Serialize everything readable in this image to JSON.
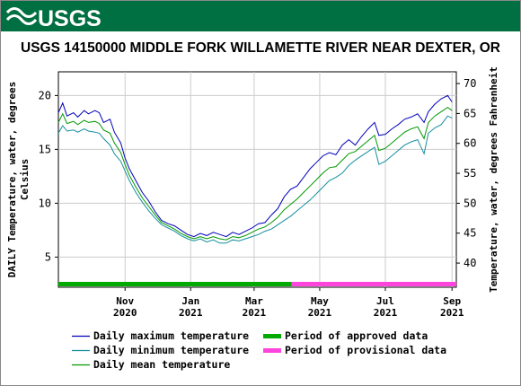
{
  "header": {
    "logo_text": "USGS",
    "bg_color": "#006f41"
  },
  "chart_data": {
    "type": "line",
    "title": "USGS 14150000 MIDDLE FORK WILLAMETTE RIVER NEAR DEXTER, OR",
    "ylabel_left": [
      "DAILY Temperature, water, degrees",
      "Celsius"
    ],
    "ylabel_right": "Temperature, water, degrees Fahrenheit",
    "ylim_celsius": [
      2.2,
      22.2
    ],
    "y_ticks_left": [
      5,
      10,
      15,
      20
    ],
    "y_ticks_right": [
      40,
      45,
      50,
      55,
      60,
      65,
      70
    ],
    "grid": true,
    "x_ticks": [
      {
        "month": "Nov",
        "year": "2020",
        "day": 62
      },
      {
        "month": "Jan",
        "year": "2021",
        "day": 123
      },
      {
        "month": "Mar",
        "year": "2021",
        "day": 182
      },
      {
        "month": "May",
        "year": "2021",
        "day": 243
      },
      {
        "month": "Jul",
        "year": "2021",
        "day": 304
      },
      {
        "month": "Sep",
        "year": "2021",
        "day": 366
      }
    ],
    "x_range_days": [
      0,
      370
    ],
    "x_start_date": "2020-08-31",
    "series": [
      {
        "name": "Daily maximum temperature",
        "color": "#0000bb",
        "points": [
          [
            0,
            18.4
          ],
          [
            4,
            19.3
          ],
          [
            8,
            18.1
          ],
          [
            14,
            18.4
          ],
          [
            18,
            18.0
          ],
          [
            24,
            18.6
          ],
          [
            28,
            18.3
          ],
          [
            34,
            18.6
          ],
          [
            38,
            18.4
          ],
          [
            42,
            17.5
          ],
          [
            48,
            17.8
          ],
          [
            52,
            16.6
          ],
          [
            58,
            15.6
          ],
          [
            62,
            14.2
          ],
          [
            66,
            13.2
          ],
          [
            72,
            12.1
          ],
          [
            78,
            11.0
          ],
          [
            84,
            10.2
          ],
          [
            90,
            9.2
          ],
          [
            96,
            8.4
          ],
          [
            102,
            8.1
          ],
          [
            108,
            7.9
          ],
          [
            114,
            7.5
          ],
          [
            120,
            7.1
          ],
          [
            126,
            6.9
          ],
          [
            132,
            7.2
          ],
          [
            138,
            7.0
          ],
          [
            144,
            7.3
          ],
          [
            150,
            7.1
          ],
          [
            156,
            6.9
          ],
          [
            162,
            7.3
          ],
          [
            168,
            7.1
          ],
          [
            174,
            7.4
          ],
          [
            180,
            7.7
          ],
          [
            186,
            8.1
          ],
          [
            192,
            8.2
          ],
          [
            198,
            8.9
          ],
          [
            204,
            9.5
          ],
          [
            210,
            10.6
          ],
          [
            216,
            11.3
          ],
          [
            222,
            11.6
          ],
          [
            228,
            12.4
          ],
          [
            234,
            13.2
          ],
          [
            240,
            13.8
          ],
          [
            246,
            14.4
          ],
          [
            252,
            14.7
          ],
          [
            258,
            14.5
          ],
          [
            264,
            15.4
          ],
          [
            270,
            15.9
          ],
          [
            276,
            15.4
          ],
          [
            282,
            16.2
          ],
          [
            288,
            16.9
          ],
          [
            294,
            17.5
          ],
          [
            298,
            16.3
          ],
          [
            304,
            16.4
          ],
          [
            310,
            16.9
          ],
          [
            316,
            17.3
          ],
          [
            322,
            17.8
          ],
          [
            328,
            18.0
          ],
          [
            334,
            18.3
          ],
          [
            340,
            17.5
          ],
          [
            344,
            18.5
          ],
          [
            350,
            19.2
          ],
          [
            356,
            19.7
          ],
          [
            362,
            20.0
          ],
          [
            366,
            19.4
          ]
        ]
      },
      {
        "name": "Daily minimum temperature",
        "color": "#138f9e",
        "points": [
          [
            0,
            16.5
          ],
          [
            4,
            17.2
          ],
          [
            8,
            16.7
          ],
          [
            14,
            16.8
          ],
          [
            18,
            16.6
          ],
          [
            24,
            16.9
          ],
          [
            28,
            16.7
          ],
          [
            34,
            16.6
          ],
          [
            38,
            16.5
          ],
          [
            42,
            16.0
          ],
          [
            48,
            15.4
          ],
          [
            52,
            14.6
          ],
          [
            58,
            13.9
          ],
          [
            62,
            13.0
          ],
          [
            66,
            12.1
          ],
          [
            72,
            11.0
          ],
          [
            78,
            10.1
          ],
          [
            84,
            9.3
          ],
          [
            90,
            8.6
          ],
          [
            96,
            8.0
          ],
          [
            102,
            7.7
          ],
          [
            108,
            7.4
          ],
          [
            114,
            7.0
          ],
          [
            120,
            6.7
          ],
          [
            126,
            6.5
          ],
          [
            132,
            6.7
          ],
          [
            138,
            6.4
          ],
          [
            144,
            6.6
          ],
          [
            150,
            6.3
          ],
          [
            156,
            6.3
          ],
          [
            162,
            6.6
          ],
          [
            168,
            6.5
          ],
          [
            174,
            6.7
          ],
          [
            180,
            6.9
          ],
          [
            186,
            7.1
          ],
          [
            192,
            7.4
          ],
          [
            198,
            7.6
          ],
          [
            204,
            8.0
          ],
          [
            210,
            8.4
          ],
          [
            216,
            8.8
          ],
          [
            222,
            9.3
          ],
          [
            228,
            9.8
          ],
          [
            234,
            10.3
          ],
          [
            240,
            10.9
          ],
          [
            246,
            11.5
          ],
          [
            252,
            12.1
          ],
          [
            258,
            12.4
          ],
          [
            264,
            12.8
          ],
          [
            270,
            13.5
          ],
          [
            276,
            14.0
          ],
          [
            282,
            14.4
          ],
          [
            288,
            14.8
          ],
          [
            294,
            15.2
          ],
          [
            298,
            13.6
          ],
          [
            304,
            13.9
          ],
          [
            310,
            14.4
          ],
          [
            316,
            14.9
          ],
          [
            322,
            15.4
          ],
          [
            328,
            15.7
          ],
          [
            334,
            15.9
          ],
          [
            340,
            14.6
          ],
          [
            344,
            16.5
          ],
          [
            350,
            17.0
          ],
          [
            356,
            17.3
          ],
          [
            362,
            18.1
          ],
          [
            366,
            17.9
          ]
        ]
      },
      {
        "name": "Daily mean temperature",
        "color": "#009900",
        "points": [
          [
            0,
            17.5
          ],
          [
            4,
            18.3
          ],
          [
            8,
            17.4
          ],
          [
            14,
            17.6
          ],
          [
            18,
            17.3
          ],
          [
            24,
            17.7
          ],
          [
            28,
            17.5
          ],
          [
            34,
            17.6
          ],
          [
            38,
            17.4
          ],
          [
            42,
            16.8
          ],
          [
            48,
            16.5
          ],
          [
            52,
            15.6
          ],
          [
            58,
            14.7
          ],
          [
            62,
            13.6
          ],
          [
            66,
            12.6
          ],
          [
            72,
            11.5
          ],
          [
            78,
            10.5
          ],
          [
            84,
            9.7
          ],
          [
            90,
            8.9
          ],
          [
            96,
            8.2
          ],
          [
            102,
            7.9
          ],
          [
            108,
            7.6
          ],
          [
            114,
            7.2
          ],
          [
            120,
            6.9
          ],
          [
            126,
            6.7
          ],
          [
            132,
            6.9
          ],
          [
            138,
            6.7
          ],
          [
            144,
            6.9
          ],
          [
            150,
            6.7
          ],
          [
            156,
            6.6
          ],
          [
            162,
            6.9
          ],
          [
            168,
            6.8
          ],
          [
            174,
            7.0
          ],
          [
            180,
            7.3
          ],
          [
            186,
            7.6
          ],
          [
            192,
            7.8
          ],
          [
            198,
            8.2
          ],
          [
            204,
            8.7
          ],
          [
            210,
            9.4
          ],
          [
            216,
            9.9
          ],
          [
            222,
            10.4
          ],
          [
            228,
            11.0
          ],
          [
            234,
            11.6
          ],
          [
            240,
            12.2
          ],
          [
            246,
            12.8
          ],
          [
            252,
            13.3
          ],
          [
            258,
            13.4
          ],
          [
            264,
            14.0
          ],
          [
            270,
            14.6
          ],
          [
            276,
            14.8
          ],
          [
            282,
            15.3
          ],
          [
            288,
            15.8
          ],
          [
            294,
            16.3
          ],
          [
            298,
            14.9
          ],
          [
            304,
            15.1
          ],
          [
            310,
            15.6
          ],
          [
            316,
            16.1
          ],
          [
            322,
            16.6
          ],
          [
            328,
            16.9
          ],
          [
            334,
            17.1
          ],
          [
            340,
            16.0
          ],
          [
            344,
            17.5
          ],
          [
            350,
            18.1
          ],
          [
            356,
            18.5
          ],
          [
            362,
            18.9
          ],
          [
            366,
            18.6
          ]
        ]
      }
    ],
    "periods": [
      {
        "name": "Period of approved data",
        "color": "#00aa00",
        "from_day": 0,
        "to_day": 217
      },
      {
        "name": "Period of provisional data",
        "color": "#ff44dd",
        "from_day": 217,
        "to_day": 370
      }
    ]
  },
  "legend": {
    "items": [
      {
        "label": "Daily maximum temperature",
        "color": "#0000bb",
        "kind": "line"
      },
      {
        "label": "Daily minimum temperature",
        "color": "#138f9e",
        "kind": "line"
      },
      {
        "label": "Daily mean temperature",
        "color": "#009900",
        "kind": "line"
      },
      {
        "label": "Period of approved data",
        "color": "#00aa00",
        "kind": "bar"
      },
      {
        "label": "Period of provisional data",
        "color": "#ff44dd",
        "kind": "bar"
      }
    ]
  }
}
